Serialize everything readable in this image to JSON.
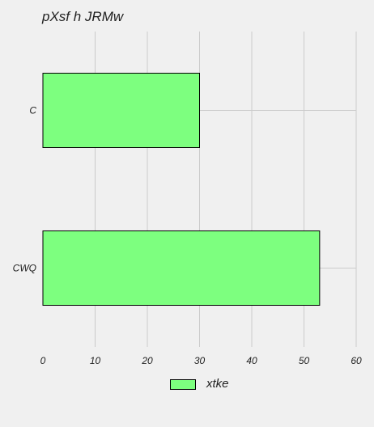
{
  "chart_data": {
    "type": "bar",
    "orientation": "horizontal",
    "title": "pXsf h JRMw",
    "categories": [
      "C",
      "CWQ"
    ],
    "series": [
      {
        "name": "xtke",
        "values": [
          30,
          53
        ]
      }
    ],
    "xlim": [
      0,
      60
    ],
    "xticks": [
      0,
      10,
      20,
      30,
      40,
      50,
      60
    ],
    "xlabel": "",
    "ylabel": "",
    "grid": true,
    "legend_position": "bottom-center",
    "colors": {
      "bar_fill": "#7dff7f",
      "bar_edge": "#000000",
      "grid": "#cbcbcb",
      "background": "#f0f0f0"
    }
  }
}
